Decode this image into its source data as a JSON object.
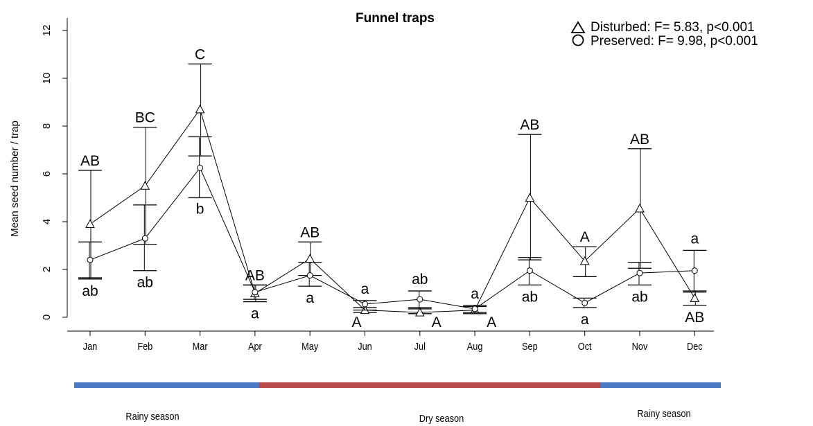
{
  "chart_data": {
    "type": "line",
    "title": "Funnel traps",
    "ylabel": "Mean seed number / trap",
    "xlabel": "",
    "ylim": [
      0,
      12
    ],
    "yticks": [
      0,
      2,
      4,
      6,
      8,
      10,
      12
    ],
    "categories": [
      "Jan",
      "Feb",
      "Mar",
      "Apr",
      "May",
      "Jun",
      "Jul",
      "Aug",
      "Sep",
      "Oct",
      "Nov",
      "Dec"
    ],
    "legend": [
      {
        "marker": "triangle",
        "text": "Disturbed: F= 5.83, p<0.001"
      },
      {
        "marker": "circle",
        "text": "Preserved: F= 9.98, p<0.001"
      }
    ],
    "series": [
      {
        "name": "Disturbed",
        "marker": "triangle",
        "values": [
          3.9,
          5.5,
          8.7,
          1.0,
          2.45,
          0.3,
          0.2,
          0.3,
          5.0,
          2.35,
          4.55,
          0.8
        ],
        "upper": [
          6.15,
          7.95,
          10.6,
          1.35,
          3.15,
          0.4,
          0.4,
          0.45,
          7.65,
          2.95,
          7.05,
          1.1
        ],
        "lower": [
          1.65,
          3.05,
          6.75,
          0.65,
          1.75,
          0.2,
          0.15,
          0.15,
          2.4,
          1.7,
          2.05,
          0.5
        ],
        "letters": [
          "AB",
          "BC",
          "C",
          "AB",
          "AB",
          "A",
          "A",
          "A",
          "AB",
          "A",
          "AB",
          "AB"
        ]
      },
      {
        "name": "Preserved",
        "marker": "circle",
        "values": [
          2.4,
          3.3,
          6.25,
          1.05,
          1.75,
          0.55,
          0.75,
          0.35,
          1.95,
          0.6,
          1.85,
          1.95
        ],
        "upper": [
          3.15,
          4.7,
          7.55,
          1.35,
          2.3,
          0.7,
          1.1,
          0.5,
          2.5,
          0.8,
          2.3,
          2.8
        ],
        "lower": [
          1.6,
          1.95,
          5.0,
          0.75,
          1.3,
          0.3,
          0.35,
          0.2,
          1.35,
          0.4,
          1.35,
          1.05
        ],
        "letters": [
          "ab",
          "ab",
          "b",
          "a",
          "a",
          "a",
          "ab",
          "a",
          "ab",
          "a",
          "ab",
          "a"
        ]
      }
    ],
    "seasons": [
      {
        "label": "Rainy season",
        "color": "#4a7ac2",
        "from": "Jan",
        "to": "Apr"
      },
      {
        "label": "Dry season",
        "color": "#b84a4a",
        "from": "Apr",
        "to": "Oct"
      },
      {
        "label": "Rainy season",
        "color": "#4a7ac2",
        "from": "Oct",
        "to": "Dec"
      }
    ]
  }
}
